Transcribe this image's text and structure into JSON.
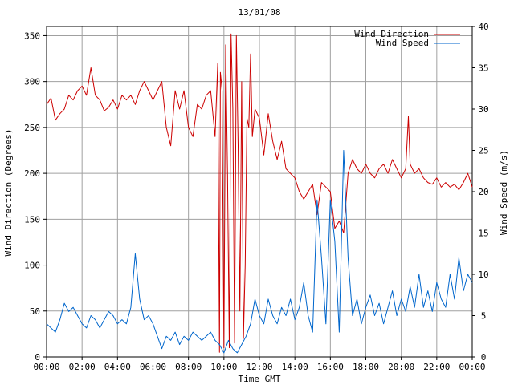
{
  "chart_data": {
    "type": "line",
    "title": "13/01/08",
    "xlabel": "Time GMT",
    "ylabel_left": "Wind Direction (Degrees)",
    "ylabel_right": "Wind Speed (m/s)",
    "xlim": [
      0,
      24
    ],
    "ylim_left": [
      0,
      360
    ],
    "ylim_right": [
      0,
      40
    ],
    "x_ticks": [
      "00:00",
      "02:00",
      "04:00",
      "06:00",
      "08:00",
      "10:00",
      "12:00",
      "14:00",
      "16:00",
      "18:00",
      "20:00",
      "22:00",
      "00:00"
    ],
    "y_ticks_left": [
      "0",
      "50",
      "100",
      "150",
      "200",
      "250",
      "300",
      "350"
    ],
    "y_ticks_right": [
      "0",
      "5",
      "10",
      "15",
      "20",
      "25",
      "30",
      "35",
      "40"
    ],
    "grid": true,
    "legend_position": "top-right",
    "series": [
      {
        "name": "Wind Direction",
        "axis": "left",
        "color": "#cc0000",
        "points": [
          [
            0.0,
            275
          ],
          [
            0.25,
            282
          ],
          [
            0.5,
            258
          ],
          [
            0.75,
            265
          ],
          [
            1.0,
            270
          ],
          [
            1.25,
            285
          ],
          [
            1.5,
            280
          ],
          [
            1.75,
            290
          ],
          [
            2.0,
            295
          ],
          [
            2.25,
            285
          ],
          [
            2.5,
            315
          ],
          [
            2.75,
            285
          ],
          [
            3.0,
            280
          ],
          [
            3.25,
            268
          ],
          [
            3.5,
            272
          ],
          [
            3.75,
            280
          ],
          [
            4.0,
            270
          ],
          [
            4.25,
            285
          ],
          [
            4.5,
            280
          ],
          [
            4.75,
            285
          ],
          [
            5.0,
            275
          ],
          [
            5.25,
            290
          ],
          [
            5.5,
            300
          ],
          [
            5.75,
            290
          ],
          [
            6.0,
            280
          ],
          [
            6.25,
            290
          ],
          [
            6.5,
            300
          ],
          [
            6.75,
            250
          ],
          [
            7.0,
            230
          ],
          [
            7.25,
            290
          ],
          [
            7.5,
            270
          ],
          [
            7.75,
            290
          ],
          [
            8.0,
            250
          ],
          [
            8.25,
            240
          ],
          [
            8.5,
            275
          ],
          [
            8.75,
            270
          ],
          [
            9.0,
            285
          ],
          [
            9.25,
            290
          ],
          [
            9.5,
            240
          ],
          [
            9.65,
            320
          ],
          [
            9.75,
            5
          ],
          [
            9.8,
            310
          ],
          [
            9.9,
            290
          ],
          [
            10.0,
            10
          ],
          [
            10.1,
            340
          ],
          [
            10.2,
            200
          ],
          [
            10.3,
            10
          ],
          [
            10.4,
            352
          ],
          [
            10.5,
            270
          ],
          [
            10.6,
            15
          ],
          [
            10.7,
            350
          ],
          [
            10.8,
            230
          ],
          [
            10.9,
            50
          ],
          [
            11.0,
            300
          ],
          [
            11.1,
            20
          ],
          [
            11.2,
            100
          ],
          [
            11.3,
            260
          ],
          [
            11.4,
            250
          ],
          [
            11.5,
            330
          ],
          [
            11.6,
            240
          ],
          [
            11.75,
            270
          ],
          [
            12.0,
            260
          ],
          [
            12.25,
            220
          ],
          [
            12.5,
            265
          ],
          [
            12.75,
            235
          ],
          [
            13.0,
            215
          ],
          [
            13.25,
            235
          ],
          [
            13.5,
            205
          ],
          [
            13.75,
            200
          ],
          [
            14.0,
            195
          ],
          [
            14.25,
            180
          ],
          [
            14.5,
            172
          ],
          [
            14.75,
            180
          ],
          [
            15.0,
            188
          ],
          [
            15.25,
            155
          ],
          [
            15.5,
            190
          ],
          [
            15.75,
            185
          ],
          [
            16.0,
            180
          ],
          [
            16.25,
            140
          ],
          [
            16.5,
            148
          ],
          [
            16.75,
            135
          ],
          [
            17.0,
            200
          ],
          [
            17.25,
            215
          ],
          [
            17.5,
            205
          ],
          [
            17.75,
            200
          ],
          [
            18.0,
            210
          ],
          [
            18.25,
            200
          ],
          [
            18.5,
            195
          ],
          [
            18.75,
            205
          ],
          [
            19.0,
            210
          ],
          [
            19.25,
            200
          ],
          [
            19.5,
            215
          ],
          [
            19.75,
            205
          ],
          [
            20.0,
            195
          ],
          [
            20.25,
            205
          ],
          [
            20.4,
            262
          ],
          [
            20.5,
            210
          ],
          [
            20.75,
            200
          ],
          [
            21.0,
            205
          ],
          [
            21.25,
            195
          ],
          [
            21.5,
            190
          ],
          [
            21.75,
            188
          ],
          [
            22.0,
            195
          ],
          [
            22.25,
            185
          ],
          [
            22.5,
            190
          ],
          [
            22.75,
            185
          ],
          [
            23.0,
            188
          ],
          [
            23.25,
            182
          ],
          [
            23.5,
            190
          ],
          [
            23.75,
            200
          ],
          [
            24.0,
            185
          ]
        ]
      },
      {
        "name": "Wind Speed",
        "axis": "right",
        "color": "#0066cc",
        "points": [
          [
            0.0,
            4
          ],
          [
            0.25,
            3.5
          ],
          [
            0.5,
            3
          ],
          [
            0.75,
            4.5
          ],
          [
            1.0,
            6.5
          ],
          [
            1.25,
            5.5
          ],
          [
            1.5,
            6
          ],
          [
            1.75,
            5
          ],
          [
            2.0,
            4
          ],
          [
            2.25,
            3.5
          ],
          [
            2.5,
            5
          ],
          [
            2.75,
            4.5
          ],
          [
            3.0,
            3.5
          ],
          [
            3.25,
            4.5
          ],
          [
            3.5,
            5.5
          ],
          [
            3.75,
            5
          ],
          [
            4.0,
            4
          ],
          [
            4.25,
            4.5
          ],
          [
            4.5,
            4
          ],
          [
            4.75,
            6
          ],
          [
            5.0,
            12.5
          ],
          [
            5.25,
            7
          ],
          [
            5.5,
            4.5
          ],
          [
            5.75,
            5
          ],
          [
            6.0,
            4
          ],
          [
            6.25,
            2.5
          ],
          [
            6.5,
            1
          ],
          [
            6.75,
            2.5
          ],
          [
            7.0,
            2
          ],
          [
            7.25,
            3
          ],
          [
            7.5,
            1.5
          ],
          [
            7.75,
            2.5
          ],
          [
            8.0,
            2
          ],
          [
            8.25,
            3
          ],
          [
            8.5,
            2.5
          ],
          [
            8.75,
            2
          ],
          [
            9.0,
            2.5
          ],
          [
            9.25,
            3
          ],
          [
            9.5,
            2
          ],
          [
            9.75,
            1.5
          ],
          [
            10.0,
            0.5
          ],
          [
            10.25,
            2
          ],
          [
            10.5,
            1
          ],
          [
            10.75,
            0.5
          ],
          [
            11.0,
            1.5
          ],
          [
            11.25,
            2.5
          ],
          [
            11.5,
            4
          ],
          [
            11.75,
            7
          ],
          [
            12.0,
            5
          ],
          [
            12.25,
            4
          ],
          [
            12.5,
            7
          ],
          [
            12.75,
            5
          ],
          [
            13.0,
            4
          ],
          [
            13.25,
            6
          ],
          [
            13.5,
            5
          ],
          [
            13.75,
            7
          ],
          [
            14.0,
            4.5
          ],
          [
            14.25,
            6
          ],
          [
            14.5,
            9
          ],
          [
            14.75,
            5
          ],
          [
            15.0,
            3
          ],
          [
            15.25,
            19
          ],
          [
            15.5,
            12
          ],
          [
            15.75,
            4
          ],
          [
            16.0,
            19
          ],
          [
            16.25,
            14
          ],
          [
            16.5,
            3
          ],
          [
            16.75,
            25
          ],
          [
            17.0,
            12
          ],
          [
            17.25,
            5
          ],
          [
            17.5,
            7
          ],
          [
            17.75,
            4
          ],
          [
            18.0,
            6
          ],
          [
            18.25,
            7.5
          ],
          [
            18.5,
            5
          ],
          [
            18.75,
            6.5
          ],
          [
            19.0,
            4
          ],
          [
            19.25,
            6
          ],
          [
            19.5,
            8
          ],
          [
            19.75,
            5
          ],
          [
            20.0,
            7
          ],
          [
            20.25,
            5.5
          ],
          [
            20.5,
            8.5
          ],
          [
            20.75,
            6
          ],
          [
            21.0,
            10
          ],
          [
            21.25,
            6
          ],
          [
            21.5,
            8
          ],
          [
            21.75,
            5.5
          ],
          [
            22.0,
            9
          ],
          [
            22.25,
            7
          ],
          [
            22.5,
            6
          ],
          [
            22.75,
            10
          ],
          [
            23.0,
            7
          ],
          [
            23.25,
            12
          ],
          [
            23.5,
            8
          ],
          [
            23.75,
            10
          ],
          [
            24.0,
            9
          ]
        ]
      }
    ]
  }
}
